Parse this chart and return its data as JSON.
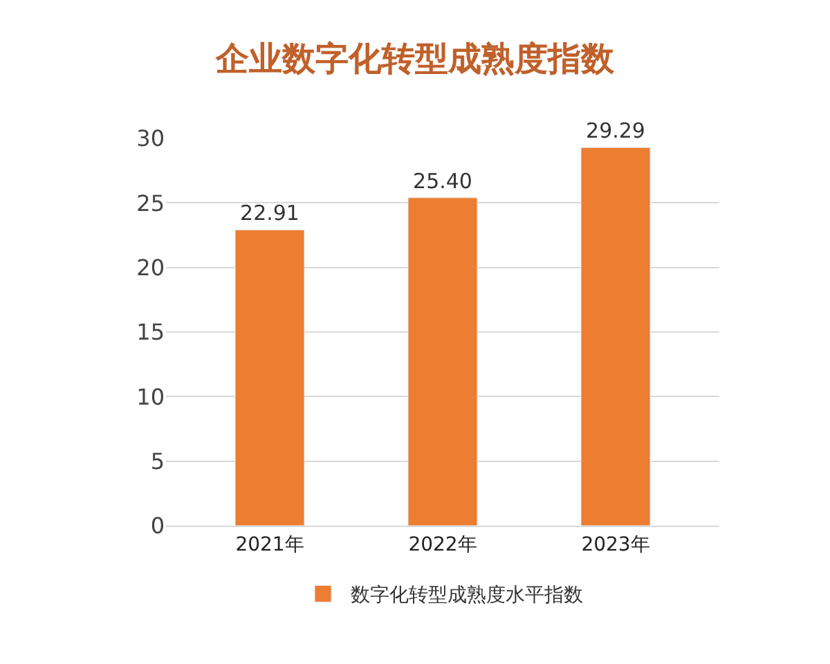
{
  "chart_data": {
    "type": "bar",
    "title": "企业数字化转型成熟度指数",
    "categories": [
      "2021年",
      "2022年",
      "2023年"
    ],
    "series": [
      {
        "name": "数字化转型成熟度水平指数",
        "color": "#ed7d31",
        "values": [
          22.91,
          25.4,
          29.29
        ]
      }
    ],
    "value_labels": [
      "22.91",
      "25.40",
      "29.29"
    ],
    "ylim": [
      0,
      30
    ],
    "yticks": [
      0,
      5,
      10,
      15,
      20,
      25,
      30
    ],
    "grid": "y",
    "legend": "bottom"
  }
}
